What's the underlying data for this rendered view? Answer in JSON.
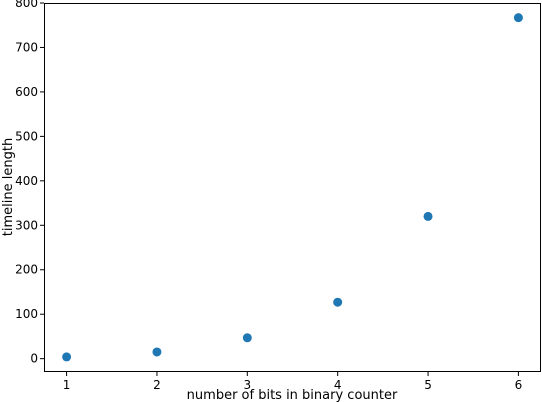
{
  "chart_data": {
    "type": "scatter",
    "title": "",
    "xlabel": "number of bits in binary counter",
    "ylabel": "timeline length",
    "xlim": [
      0.75,
      6.25
    ],
    "ylim": [
      -30,
      800
    ],
    "xticks": [
      1,
      2,
      3,
      4,
      5,
      6
    ],
    "yticks": [
      0,
      100,
      200,
      300,
      400,
      500,
      600,
      700,
      800
    ],
    "xtick_labels": [
      "1",
      "2",
      "3",
      "4",
      "5",
      "6"
    ],
    "ytick_labels": [
      "0",
      "100",
      "200",
      "300",
      "400",
      "500",
      "600",
      "700",
      "800"
    ],
    "grid": false,
    "color": "#1f77b4",
    "points": [
      {
        "x": 1,
        "y": 4
      },
      {
        "x": 2,
        "y": 15
      },
      {
        "x": 3,
        "y": 47
      },
      {
        "x": 4,
        "y": 127
      },
      {
        "x": 5,
        "y": 320
      },
      {
        "x": 6,
        "y": 767
      }
    ]
  }
}
